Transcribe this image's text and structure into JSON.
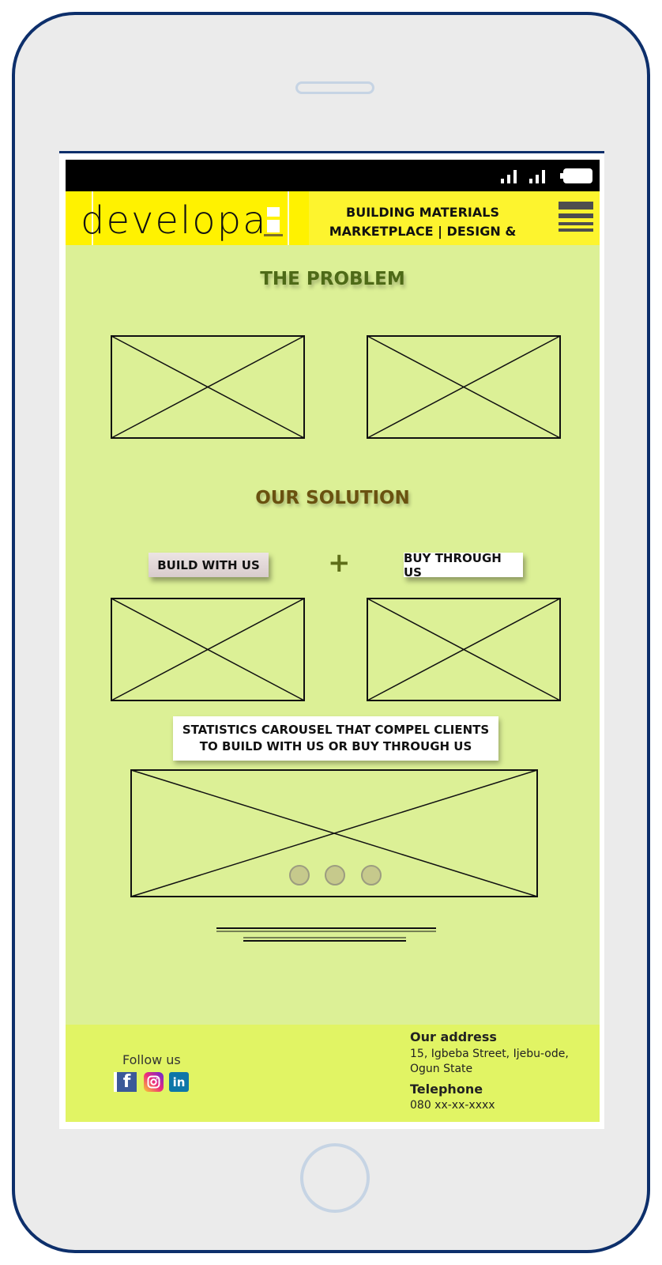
{
  "header": {
    "logo_text": "developa",
    "tagline_line1": "BUILDING MATERIALS",
    "tagline_line2": "MARKETPLACE | DESIGN & BUILD"
  },
  "problem": {
    "title": "THE PROBLEM"
  },
  "solution": {
    "title": "OUR SOLUTION",
    "build_label": "BUILD WITH US",
    "plus": "+",
    "buy_label": "BUY THROUGH US"
  },
  "stats": {
    "text": "STATISTICS CAROUSEL THAT COMPEL CLIENTS TO BUILD WITH US OR BUY THROUGH US",
    "dots": 3
  },
  "footer": {
    "follow_label": "Follow us",
    "address_title": "Our address",
    "address_text": "15, Igbeba Street, Ijebu-ode, Ogun State",
    "telephone_title": "Telephone",
    "telephone_text": "080 xx-xx-xxxx"
  },
  "colors": {
    "content_bg": "#dcf096",
    "header_bg": "#fdf42e",
    "footer_bg": "#e1f464",
    "phone_border": "#0d2f6b"
  }
}
